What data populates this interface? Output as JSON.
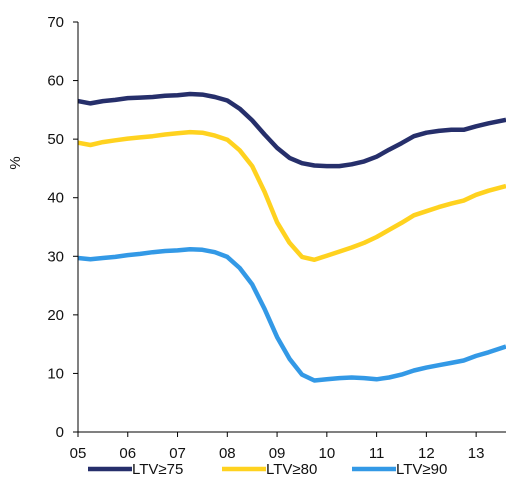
{
  "chart_data": {
    "type": "line",
    "title": "",
    "xlabel": "",
    "ylabel": "%",
    "ylim": [
      0,
      70
    ],
    "yticks": [
      0,
      10,
      20,
      30,
      40,
      50,
      60,
      70
    ],
    "xlim": [
      5,
      13.6
    ],
    "xticks": [
      5,
      6,
      7,
      8,
      9,
      10,
      11,
      12,
      13
    ],
    "xtick_labels": [
      "05",
      "06",
      "07",
      "08",
      "09",
      "10",
      "11",
      "12",
      "13"
    ],
    "grid": false,
    "legend_position": "bottom",
    "series": [
      {
        "name": "LTV≥75",
        "color": "#262F6B",
        "x": [
          5.0,
          5.25,
          5.5,
          5.75,
          6.0,
          6.25,
          6.5,
          6.75,
          7.0,
          7.25,
          7.5,
          7.75,
          8.0,
          8.25,
          8.5,
          8.75,
          9.0,
          9.25,
          9.5,
          9.75,
          10.0,
          10.25,
          10.5,
          10.75,
          11.0,
          11.25,
          11.5,
          11.75,
          12.0,
          12.25,
          12.5,
          12.75,
          13.0,
          13.25,
          13.6
        ],
        "y": [
          56.5,
          56.1,
          56.5,
          56.7,
          57.0,
          57.1,
          57.2,
          57.4,
          57.5,
          57.7,
          57.6,
          57.2,
          56.6,
          55.2,
          53.2,
          50.8,
          48.5,
          46.8,
          45.9,
          45.5,
          45.4,
          45.4,
          45.7,
          46.2,
          47.0,
          48.2,
          49.3,
          50.5,
          51.1,
          51.4,
          51.6,
          51.6,
          52.2,
          52.7,
          53.3
        ]
      },
      {
        "name": "LTV≥80",
        "color": "#FFD21F",
        "x": [
          5.0,
          5.25,
          5.5,
          5.75,
          6.0,
          6.25,
          6.5,
          6.75,
          7.0,
          7.25,
          7.5,
          7.75,
          8.0,
          8.25,
          8.5,
          8.75,
          9.0,
          9.25,
          9.5,
          9.75,
          10.0,
          10.25,
          10.5,
          10.75,
          11.0,
          11.25,
          11.5,
          11.75,
          12.0,
          12.25,
          12.5,
          12.75,
          13.0,
          13.25,
          13.6
        ],
        "y": [
          49.4,
          49.0,
          49.5,
          49.8,
          50.1,
          50.3,
          50.5,
          50.8,
          51.0,
          51.2,
          51.1,
          50.6,
          49.9,
          48.1,
          45.4,
          41.0,
          35.8,
          32.3,
          29.9,
          29.4,
          30.1,
          30.8,
          31.5,
          32.3,
          33.3,
          34.5,
          35.7,
          37.0,
          37.7,
          38.4,
          39.0,
          39.5,
          40.5,
          41.2,
          42.0
        ]
      },
      {
        "name": "LTV≥90",
        "color": "#3399E6",
        "x": [
          5.0,
          5.25,
          5.5,
          5.75,
          6.0,
          6.25,
          6.5,
          6.75,
          7.0,
          7.25,
          7.5,
          7.75,
          8.0,
          8.25,
          8.5,
          8.75,
          9.0,
          9.25,
          9.5,
          9.75,
          10.0,
          10.25,
          10.5,
          10.75,
          11.0,
          11.25,
          11.5,
          11.75,
          12.0,
          12.25,
          12.5,
          12.75,
          13.0,
          13.25,
          13.6
        ],
        "y": [
          29.7,
          29.5,
          29.7,
          29.9,
          30.2,
          30.4,
          30.7,
          30.9,
          31.0,
          31.2,
          31.1,
          30.7,
          29.9,
          28.0,
          25.2,
          21.0,
          16.2,
          12.5,
          9.8,
          8.8,
          9.0,
          9.2,
          9.3,
          9.2,
          9.0,
          9.3,
          9.8,
          10.5,
          11.0,
          11.4,
          11.8,
          12.2,
          13.0,
          13.6,
          14.6
        ]
      }
    ]
  }
}
